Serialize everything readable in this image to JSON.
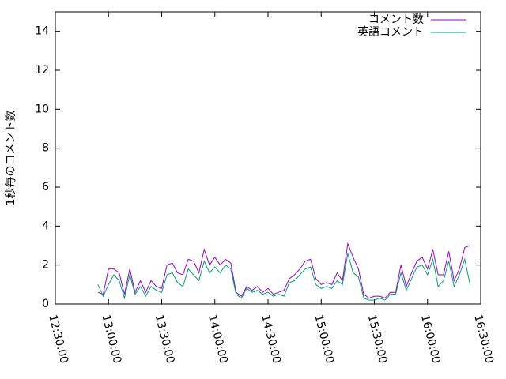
{
  "chart_data": {
    "type": "line",
    "ylabel": "1秒毎のコメント数",
    "x": [
      "12:54:00",
      "12:57:00",
      "13:00:00",
      "13:03:00",
      "13:06:00",
      "13:09:00",
      "13:12:00",
      "13:15:00",
      "13:18:00",
      "13:21:00",
      "13:24:00",
      "13:27:00",
      "13:30:00",
      "13:33:00",
      "13:36:00",
      "13:39:00",
      "13:42:00",
      "13:45:00",
      "13:48:00",
      "13:51:00",
      "13:54:00",
      "13:57:00",
      "14:00:00",
      "14:03:00",
      "14:06:00",
      "14:09:00",
      "14:12:00",
      "14:15:00",
      "14:18:00",
      "14:21:00",
      "14:24:00",
      "14:27:00",
      "14:30:00",
      "14:33:00",
      "14:36:00",
      "14:39:00",
      "14:42:00",
      "14:45:00",
      "14:48:00",
      "14:51:00",
      "14:54:00",
      "14:57:00",
      "15:00:00",
      "15:03:00",
      "15:06:00",
      "15:09:00",
      "15:12:00",
      "15:15:00",
      "15:18:00",
      "15:21:00",
      "15:24:00",
      "15:27:00",
      "15:30:00",
      "15:33:00",
      "15:36:00",
      "15:39:00",
      "15:42:00",
      "15:45:00",
      "15:48:00",
      "15:51:00",
      "15:54:00",
      "15:57:00",
      "16:00:00",
      "16:03:00",
      "16:06:00",
      "16:09:00",
      "16:12:00",
      "16:15:00",
      "16:18:00",
      "16:21:00",
      "16:24:00"
    ],
    "series": [
      {
        "name": "コメント数",
        "color": "#9400d3",
        "values": [
          0.6,
          0.5,
          1.8,
          1.8,
          1.6,
          0.5,
          1.8,
          0.6,
          1.2,
          0.6,
          1.2,
          0.9,
          0.8,
          2.0,
          2.1,
          1.6,
          1.5,
          2.3,
          2.2,
          1.6,
          2.8,
          2.0,
          2.4,
          2.0,
          2.3,
          2.1,
          0.6,
          0.4,
          0.9,
          0.7,
          0.9,
          0.6,
          0.8,
          0.5,
          0.6,
          0.7,
          1.3,
          1.5,
          1.8,
          2.2,
          2.3,
          1.3,
          1.0,
          1.1,
          1.0,
          1.6,
          1.2,
          3.1,
          2.4,
          1.8,
          0.5,
          0.3,
          0.4,
          0.4,
          0.3,
          0.6,
          0.6,
          2.0,
          0.9,
          1.6,
          2.2,
          2.4,
          1.8,
          2.8,
          1.5,
          1.5,
          2.7,
          1.2,
          1.8,
          2.9,
          3.0
        ]
      },
      {
        "name": "英語コメント",
        "color": "#009e73",
        "values": [
          1.0,
          0.4,
          1.0,
          1.5,
          1.2,
          0.3,
          1.5,
          0.5,
          0.9,
          0.4,
          0.9,
          0.7,
          0.6,
          1.5,
          1.6,
          1.1,
          0.9,
          1.8,
          1.5,
          1.2,
          2.2,
          1.6,
          1.9,
          1.6,
          2.0,
          1.8,
          0.5,
          0.3,
          0.8,
          0.6,
          0.7,
          0.5,
          0.6,
          0.4,
          0.5,
          0.4,
          1.1,
          1.2,
          1.5,
          1.8,
          1.9,
          1.0,
          0.8,
          0.9,
          0.8,
          1.2,
          1.0,
          2.6,
          1.6,
          1.4,
          0.3,
          0.2,
          0.2,
          0.3,
          0.2,
          0.5,
          0.5,
          1.6,
          0.7,
          1.3,
          1.9,
          2.0,
          1.5,
          2.3,
          0.9,
          1.2,
          2.2,
          0.9,
          1.5,
          2.3,
          1.0
        ]
      }
    ],
    "xlim": [
      "12:30:00",
      "16:30:00"
    ],
    "xticks": [
      "12:30:00",
      "13:00:00",
      "13:30:00",
      "14:00:00",
      "14:30:00",
      "15:00:00",
      "15:30:00",
      "16:00:00",
      "16:30:00"
    ],
    "ylim": [
      0,
      15
    ],
    "yticks": [
      0,
      2,
      4,
      6,
      8,
      10,
      12,
      14
    ],
    "legend": "top-right"
  }
}
